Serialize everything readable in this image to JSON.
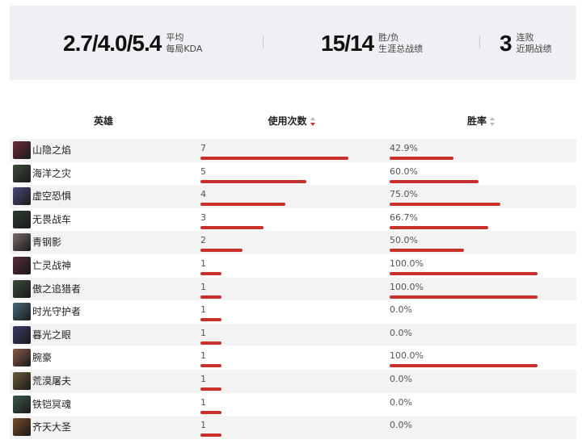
{
  "summary": {
    "kda": {
      "value": "2.7/4.0/5.4",
      "label_line1": "平均",
      "label_line2": "每局KDA"
    },
    "win_loss": {
      "value": "15/14",
      "label_line1": "胜/负",
      "label_line2": "生涯总战绩"
    },
    "streak": {
      "value": "3",
      "label_line1": "连败",
      "label_line2": "近期战绩"
    }
  },
  "table": {
    "headers": {
      "hero": "英雄",
      "uses": "使用次数",
      "win_rate": "胜率"
    },
    "max_uses": 7,
    "rows": [
      {
        "hero": "山隐之焰",
        "uses": "7",
        "win_rate": "42.9%",
        "win_rate_value": 42.9,
        "avatar_color": "#6b2a3a"
      },
      {
        "hero": "海洋之灾",
        "uses": "5",
        "win_rate": "60.0%",
        "win_rate_value": 60.0,
        "avatar_color": "#3c4a3a"
      },
      {
        "hero": "虚空恐惧",
        "uses": "4",
        "win_rate": "75.0%",
        "win_rate_value": 75.0,
        "avatar_color": "#4a4a7a"
      },
      {
        "hero": "无畏战车",
        "uses": "3",
        "win_rate": "66.7%",
        "win_rate_value": 66.7,
        "avatar_color": "#2f3d33"
      },
      {
        "hero": "青钢影",
        "uses": "2",
        "win_rate": "50.0%",
        "win_rate_value": 50.0,
        "avatar_color": "#7a6a6a"
      },
      {
        "hero": "亡灵战神",
        "uses": "1",
        "win_rate": "100.0%",
        "win_rate_value": 100.0,
        "avatar_color": "#5a2a3a"
      },
      {
        "hero": "傲之追猎者",
        "uses": "1",
        "win_rate": "100.0%",
        "win_rate_value": 100.0,
        "avatar_color": "#3a4a3a"
      },
      {
        "hero": "时光守护者",
        "uses": "1",
        "win_rate": "0.0%",
        "win_rate_value": 0.0,
        "avatar_color": "#4a6a7a"
      },
      {
        "hero": "暮光之眼",
        "uses": "1",
        "win_rate": "0.0%",
        "win_rate_value": 0.0,
        "avatar_color": "#3a3a6a"
      },
      {
        "hero": "腕豪",
        "uses": "1",
        "win_rate": "100.0%",
        "win_rate_value": 100.0,
        "avatar_color": "#8a5a4a"
      },
      {
        "hero": "荒漠屠夫",
        "uses": "1",
        "win_rate": "0.0%",
        "win_rate_value": 0.0,
        "avatar_color": "#6a5a3a"
      },
      {
        "hero": "铁铠冥魂",
        "uses": "1",
        "win_rate": "0.0%",
        "win_rate_value": 0.0,
        "avatar_color": "#3a5a4a"
      },
      {
        "hero": "齐天大圣",
        "uses": "1",
        "win_rate": "0.0%",
        "win_rate_value": 0.0,
        "avatar_color": "#7a4a2a"
      }
    ]
  },
  "colors": {
    "accent": "#c9302c",
    "summary_bg": "#eef0f3",
    "alt_row": "#f3f3f3"
  }
}
